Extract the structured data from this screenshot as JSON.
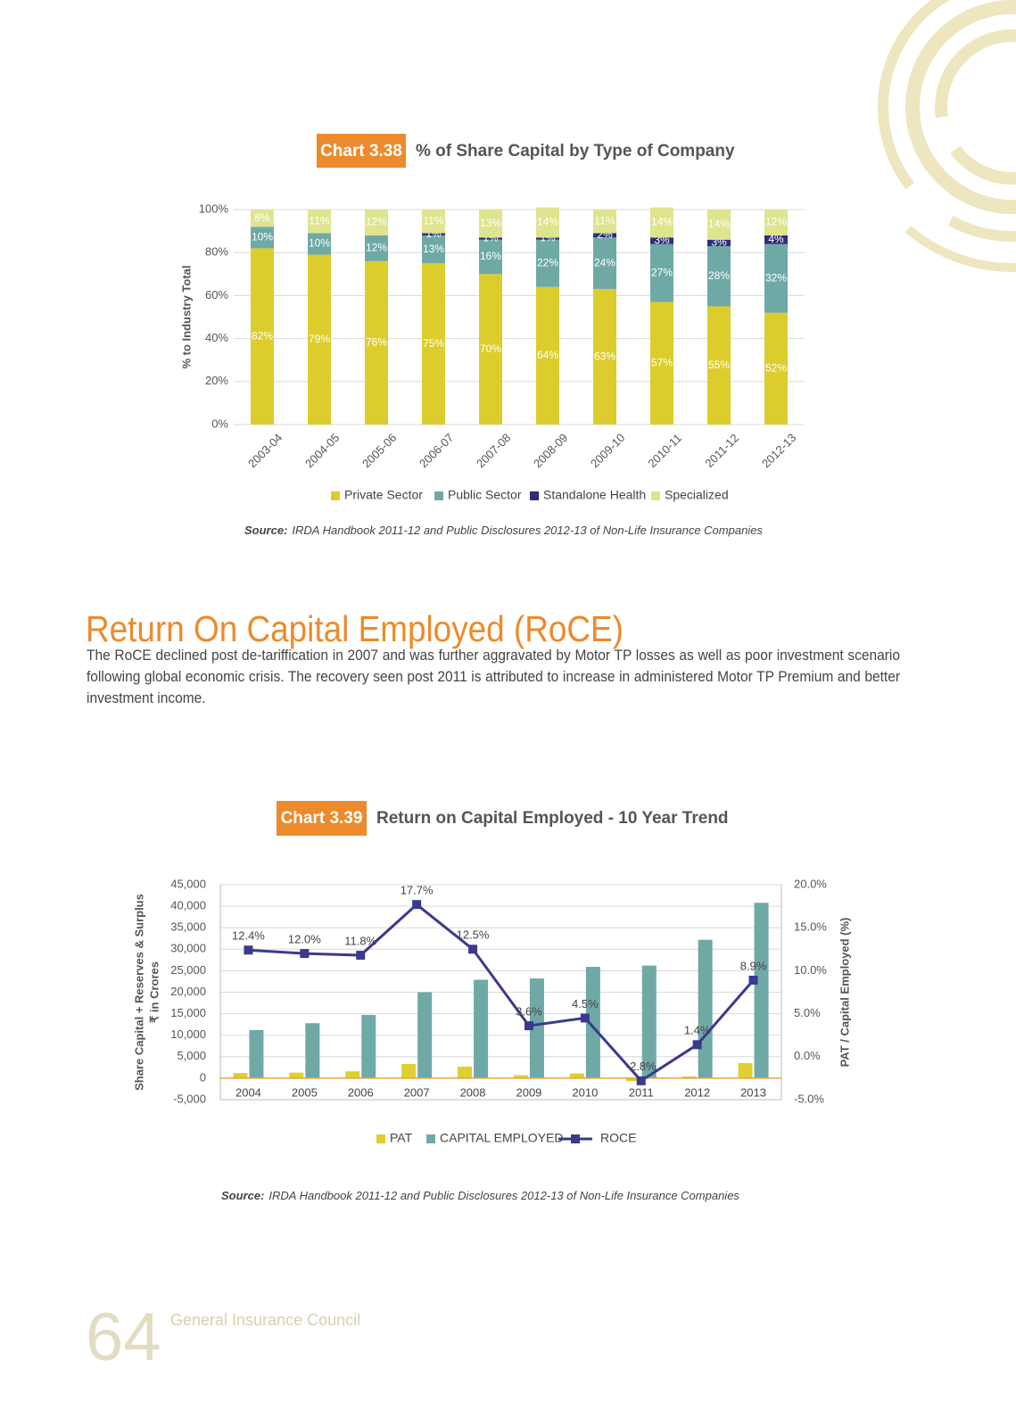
{
  "chart_data": [
    {
      "type": "bar",
      "stacked": true,
      "label": "Chart 3.38",
      "title": "% of Share Capital by Type of Company",
      "ylabel": "% to Industry Total",
      "categories": [
        "2003-04",
        "2004-05",
        "2005-06",
        "2006-07",
        "2007-08",
        "2008-09",
        "2009-10",
        "2010-11",
        "2011-12",
        "2012-13"
      ],
      "series": [
        {
          "name": "Private Sector",
          "color": "#dccd2c",
          "values": [
            82,
            79,
            76,
            75,
            70,
            64,
            63,
            57,
            55,
            52
          ],
          "value_labels": [
            "82%",
            "79%",
            "76%",
            "75%",
            "70%",
            "64%",
            "63%",
            "57%",
            "55%",
            "52%"
          ]
        },
        {
          "name": "Public Sector",
          "color": "#6fa9a6",
          "values": [
            10,
            10,
            12,
            13,
            16,
            22,
            24,
            27,
            28,
            32
          ],
          "value_labels": [
            "10%",
            "10%",
            "12%",
            "13%",
            "16%",
            "22%",
            "24%",
            "27%",
            "28%",
            "32%"
          ]
        },
        {
          "name": "Standalone Health",
          "color": "#2e2e7a",
          "values": [
            null,
            null,
            null,
            1,
            1,
            1,
            2,
            3,
            3,
            4
          ],
          "value_labels": [
            null,
            null,
            null,
            "1%",
            "1%",
            "1%",
            "2%",
            "3%",
            "3%",
            "4%"
          ]
        },
        {
          "name": "Specialized",
          "color": "#dfe48f",
          "values": [
            8,
            11,
            12,
            11,
            13,
            14,
            11,
            14,
            14,
            12
          ],
          "value_labels": [
            "8%",
            "11%",
            "12%",
            "11%",
            "13%",
            "14%",
            "11%",
            "14%",
            "14%",
            "12%"
          ]
        }
      ],
      "ylim": [
        0,
        100
      ],
      "yticks": [
        {
          "value": 0,
          "label": "0%"
        },
        {
          "value": 20,
          "label": "20%"
        },
        {
          "value": 40,
          "label": "40%"
        },
        {
          "value": 60,
          "label": "60%"
        },
        {
          "value": 80,
          "label": "80%"
        },
        {
          "value": 100,
          "label": "100%"
        }
      ],
      "grid": true,
      "source_label": "Source:",
      "source": "IRDA Handbook 2011-12 and Public Disclosures 2012-13 of Non-Life Insurance Companies"
    },
    {
      "type": "bar",
      "label": "Chart 3.39",
      "title": "Return on Capital Employed - 10 Year Trend",
      "ylabel": [
        "Share Capital + Reserves & Surplus",
        "₹ in Crores"
      ],
      "y2label": "PAT / Capital Employed (%)",
      "categories": [
        "2004",
        "2005",
        "2006",
        "2007",
        "2008",
        "2009",
        "2010",
        "2011",
        "2012",
        "2013"
      ],
      "series": [
        {
          "name": "PAT",
          "color": "#e0cf2e",
          "values": [
            1200,
            1300,
            1600,
            3300,
            2700,
            700,
            1100,
            -700,
            400,
            3500
          ]
        },
        {
          "name": "CAPITAL EMPLOYED",
          "color": "#6fa9a6",
          "values": [
            11200,
            12800,
            14700,
            20000,
            22900,
            23200,
            25900,
            26200,
            32200,
            40800
          ]
        },
        {
          "name": "ROCE",
          "type": "line",
          "axis": "y2",
          "color": "#3a3a8c",
          "values": [
            12.4,
            12.0,
            11.8,
            17.7,
            12.5,
            3.6,
            4.5,
            -2.8,
            1.4,
            8.9
          ],
          "value_labels": [
            "12.4%",
            "12.0%",
            "11.8%",
            "17.7%",
            "12.5%",
            "3.6%",
            "4.5%",
            "-2.8%",
            "1.4%",
            "8.9%"
          ]
        }
      ],
      "ylim": [
        -5000,
        45000
      ],
      "yticks": [
        {
          "value": -5000,
          "label": "-5,000"
        },
        0,
        {
          "value": 5000,
          "label": "5,000"
        },
        {
          "value": 10000,
          "label": "10,000"
        },
        {
          "value": 15000,
          "label": "15,000"
        },
        {
          "value": 20000,
          "label": "20,000"
        },
        {
          "value": 25000,
          "label": "25,000"
        },
        {
          "value": 30000,
          "label": "30,000"
        },
        {
          "value": 35000,
          "label": "35,000"
        },
        {
          "value": 40000,
          "label": "40,000"
        },
        {
          "value": 45000,
          "label": "45,000"
        }
      ],
      "y2lim": [
        -5,
        20
      ],
      "y2ticks": [
        {
          "value": -5,
          "label": "-5.0%"
        },
        {
          "value": 0,
          "label": "0.0%"
        },
        {
          "value": 5,
          "label": "5.0%"
        },
        {
          "value": 10,
          "label": "10.0%"
        },
        {
          "value": 15,
          "label": "15.0%"
        },
        {
          "value": 20,
          "label": "20.0%"
        }
      ],
      "grid": true,
      "source_label": "Source:",
      "source": "IRDA Handbook 2011-12 and Public Disclosures 2012-13 of Non-Life Insurance Companies"
    }
  ],
  "heading": "Return On Capital Employed (RoCE)",
  "paragraph": "The RoCE declined post de-tariffication in 2007 and was further aggravated by Motor TP losses as well as poor investment scenario following global economic crisis. The recovery seen post 2011 is attributed to increase in administered Motor TP Premium and better investment income.",
  "footer": {
    "page_number": "64",
    "publisher": "General Insurance Council"
  }
}
